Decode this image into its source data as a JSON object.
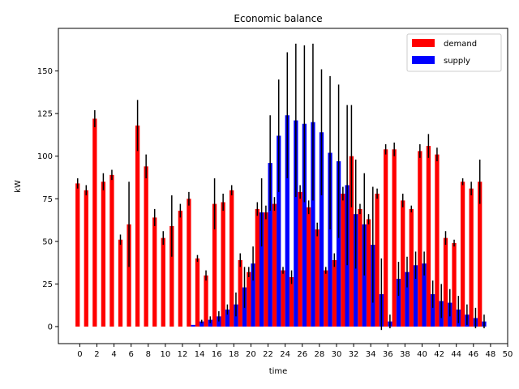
{
  "chart_data": {
    "type": "bar",
    "title": "Economic balance",
    "xlabel": "time",
    "ylabel": "kW",
    "xlim": [
      -2.5,
      50
    ],
    "ylim": [
      -10,
      175
    ],
    "x_ticks": [
      0,
      2,
      4,
      6,
      8,
      10,
      12,
      14,
      16,
      18,
      20,
      22,
      24,
      26,
      28,
      30,
      32,
      34,
      36,
      38,
      40,
      42,
      44,
      46,
      48,
      50
    ],
    "y_ticks": [
      0,
      25,
      50,
      75,
      100,
      125,
      150
    ],
    "grid": false,
    "legend_position": "top-right",
    "error_bar_color": "#000000",
    "series": [
      {
        "name": "demand",
        "color": "#ff0000",
        "x": [
          0,
          1,
          2,
          3,
          4,
          5,
          6,
          7,
          8,
          9,
          10,
          11,
          12,
          13,
          14,
          15,
          16,
          17,
          18,
          19,
          20,
          21,
          22,
          23,
          24,
          25,
          26,
          27,
          28,
          29,
          30,
          31,
          32,
          33,
          34,
          35,
          36,
          37,
          38,
          39,
          40,
          41,
          42,
          43,
          44,
          45,
          46,
          47
        ],
        "values": [
          84,
          80,
          122,
          85,
          89,
          51,
          60,
          118,
          94,
          64,
          52,
          59,
          68,
          75,
          40,
          30,
          72,
          73,
          80,
          39,
          32,
          69,
          67,
          72,
          33,
          29,
          79,
          70,
          57,
          33,
          39,
          78,
          100,
          69,
          63,
          78,
          104,
          104,
          74,
          69,
          103,
          106,
          101,
          52,
          49,
          85,
          81,
          85
        ],
        "errors": [
          3,
          3,
          5,
          5,
          3,
          3,
          25,
          15,
          7,
          5,
          4,
          18,
          4,
          4,
          2,
          3,
          15,
          5,
          3,
          4,
          3,
          4,
          4,
          4,
          2,
          4,
          4,
          4,
          4,
          2,
          4,
          4,
          30,
          3,
          3,
          3,
          3,
          4,
          4,
          2,
          4,
          7,
          4,
          4,
          2,
          2,
          4,
          13
        ]
      },
      {
        "name": "supply",
        "color": "#0000ff",
        "x": [
          0,
          1,
          2,
          3,
          4,
          5,
          6,
          7,
          8,
          9,
          10,
          11,
          12,
          13,
          14,
          15,
          16,
          17,
          18,
          19,
          20,
          21,
          22,
          23,
          24,
          25,
          26,
          27,
          28,
          29,
          30,
          31,
          32,
          33,
          34,
          35,
          36,
          37,
          38,
          39,
          40,
          41,
          42,
          43,
          44,
          45,
          46,
          47
        ],
        "values": [
          0,
          0,
          0,
          0,
          0,
          0,
          0,
          0,
          0,
          0,
          0,
          0,
          0,
          1,
          3,
          4,
          6,
          10,
          13,
          23,
          37,
          67,
          96,
          112,
          124,
          121,
          119,
          120,
          114,
          102,
          97,
          83,
          66,
          60,
          48,
          19,
          3,
          28,
          32,
          36,
          37,
          19,
          15,
          14,
          10,
          7,
          5,
          3
        ],
        "errors": [
          0,
          0,
          0,
          0,
          0,
          0,
          0,
          0,
          0,
          0,
          0,
          0,
          0,
          0,
          1,
          2,
          3,
          3,
          7,
          12,
          10,
          20,
          28,
          33,
          37,
          45,
          46,
          46,
          37,
          45,
          45,
          47,
          32,
          30,
          34,
          21,
          4,
          10,
          9,
          8,
          7,
          8,
          10,
          8,
          8,
          6,
          6,
          4
        ]
      }
    ]
  }
}
